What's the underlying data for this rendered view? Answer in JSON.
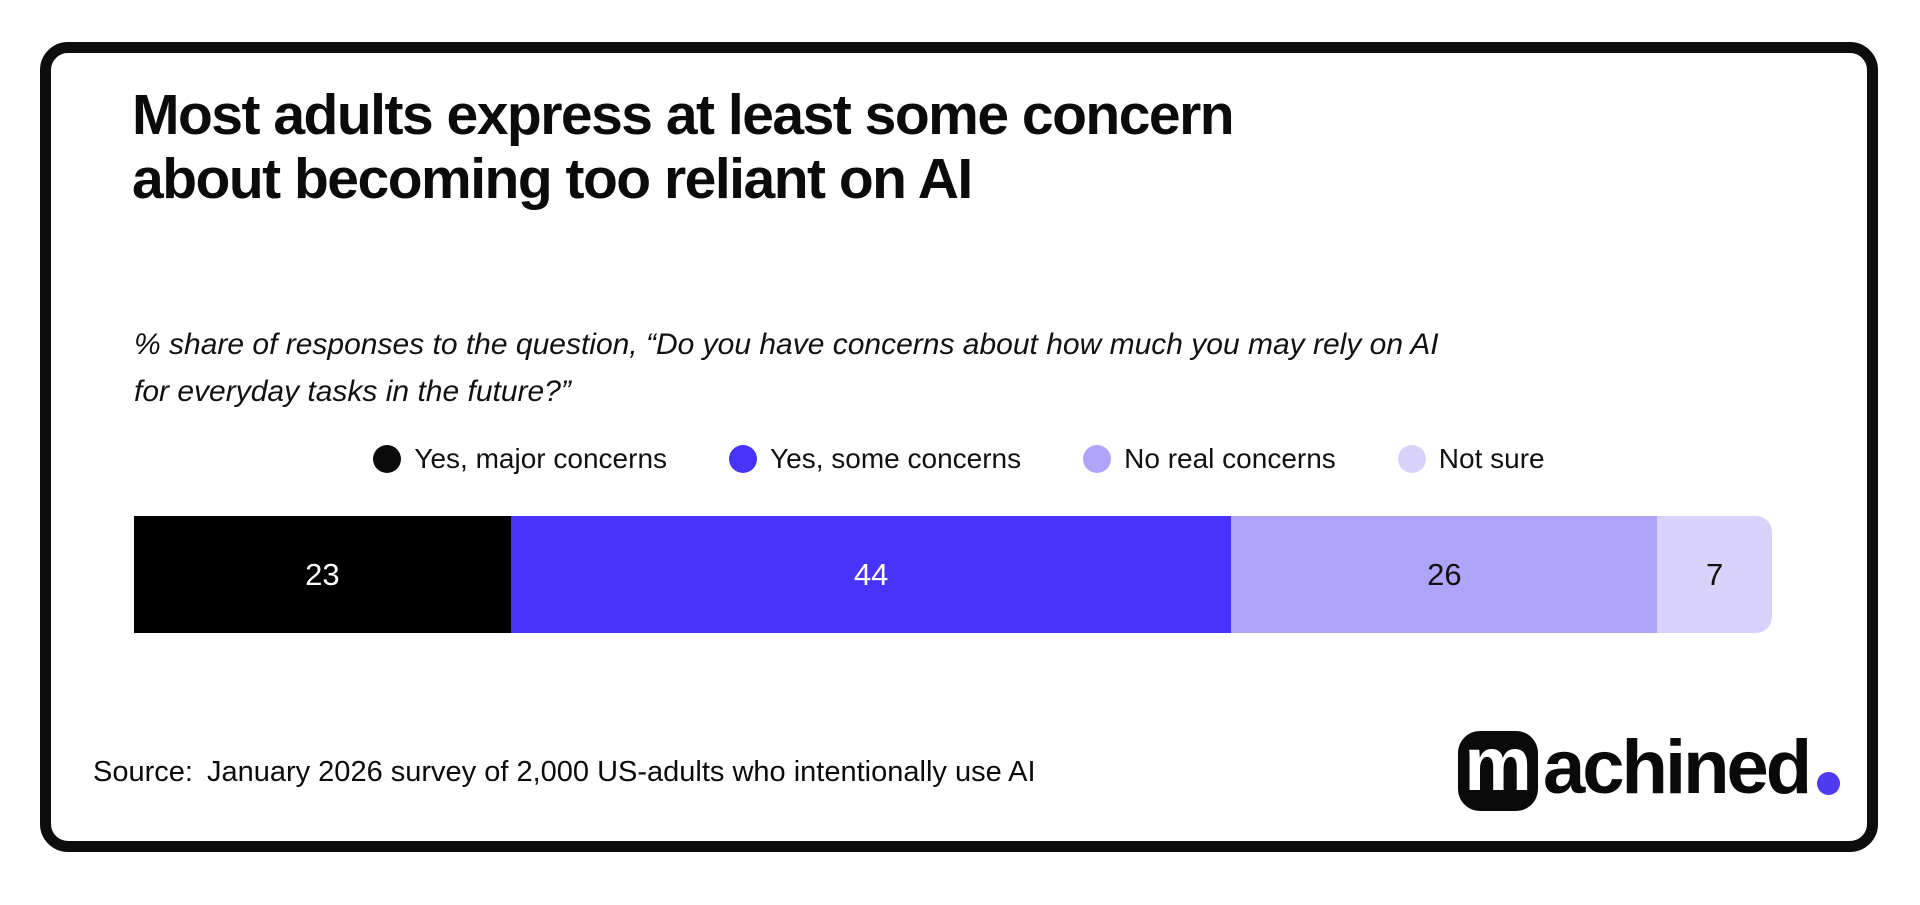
{
  "colors": {
    "accent_purple": "#4733fa",
    "light_purple": "#afa4fa",
    "lightest_purple": "#d8d2f8",
    "ink_black": "#0a0a0a",
    "logo_dot": "#4e3af2"
  },
  "header": {
    "title_line1": "Most adults express at least some concern",
    "title_line2": "about becoming too reliant on AI",
    "subtitle_line1": "% share of responses to the question, “Do you have concerns about how much you may rely on AI",
    "subtitle_line2": "for everyday tasks in the future?”"
  },
  "legend": {
    "items": [
      {
        "label": "Yes, major concerns",
        "color": "#0a0a0a"
      },
      {
        "label": "Yes, some concerns",
        "color": "#4733fa"
      },
      {
        "label": "No real concerns",
        "color": "#afa4fa"
      },
      {
        "label": "Not sure",
        "color": "#d8d2f8"
      }
    ]
  },
  "bar": {
    "segments": [
      {
        "label": "23",
        "value": 23,
        "color": "#000000",
        "text_color": "#ffffff"
      },
      {
        "label": "44",
        "value": 44,
        "color": "#4733fa",
        "text_color": "#ffffff"
      },
      {
        "label": "26",
        "value": 26,
        "color": "#afa4fa",
        "text_color": "#111111"
      },
      {
        "label": "7",
        "value": 7,
        "color": "#d8d2f8",
        "text_color": "#111111"
      }
    ]
  },
  "footer": {
    "source_label": "Source:",
    "source_text": "January 2026 survey of 2,000 US-adults who intentionally use AI"
  },
  "logo": {
    "boxed_letter": "m",
    "wordmark": "achined",
    "dot_color": "#4e3af2"
  },
  "chart_data": {
    "type": "bar",
    "variant": "horizontal-stacked",
    "title": "Most adults express at least some concern about becoming too reliant on AI",
    "subtitle": "% share of responses to the question, “Do you have concerns about how much you may rely on AI for everyday tasks in the future?”",
    "categories": [
      "Yes, major concerns",
      "Yes, some concerns",
      "No real concerns",
      "Not sure"
    ],
    "values": [
      23,
      44,
      26,
      7
    ],
    "unit": "%",
    "xlim": [
      0,
      100
    ],
    "grid": false,
    "legend_position": "top",
    "series_colors": [
      "#000000",
      "#4733fa",
      "#afa4fa",
      "#d8d2f8"
    ],
    "data_labels": [
      23,
      44,
      26,
      7
    ],
    "source": "Source: January 2026 survey of 2,000 US-adults who intentionally use AI"
  }
}
